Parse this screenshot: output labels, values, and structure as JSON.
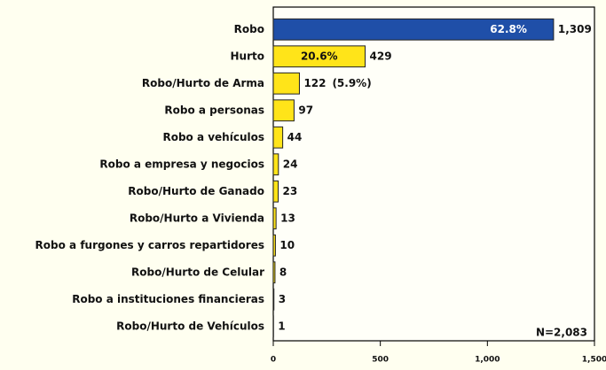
{
  "chart_data": {
    "type": "barh",
    "categories": [
      "Robo",
      "Hurto",
      "Robo/Hurto de Arma",
      "Robo a personas",
      "Robo a vehículos",
      "Robo a empresa y negocios",
      "Robo/Hurto de Ganado",
      "Robo/Hurto a Vivienda",
      "Robo a furgones y carros repartidores",
      "Robo/Hurto de Celular",
      "Robo a instituciones financieras",
      "Robo/Hurto de Vehículos"
    ],
    "values": [
      1309,
      429,
      122,
      97,
      44,
      24,
      23,
      13,
      10,
      8,
      3,
      1
    ],
    "value_labels": [
      "1,309",
      "429",
      "122",
      "97",
      "44",
      "24",
      "23",
      "13",
      "10",
      "8",
      "3",
      "1"
    ],
    "colors": [
      "#1f4fa8",
      "#ffe419",
      "#ffe419",
      "#ffe419",
      "#ffe419",
      "#ffe419",
      "#ffe419",
      "#ffe419",
      "#ffe419",
      "#ffe419",
      "#ffe419",
      "#ffe419"
    ],
    "percentages": {
      "values": [
        62.8,
        20.6,
        5.9
      ],
      "labels": [
        "62.8%",
        "20.6%",
        "(5.9%)"
      ]
    },
    "annotation": "N=2,083",
    "xlim": [
      0,
      1500
    ],
    "xticks": [
      0,
      500,
      {
        "value": 1000,
        "label": "1,000"
      },
      {
        "value": 1500,
        "label": "1,500"
      }
    ]
  }
}
